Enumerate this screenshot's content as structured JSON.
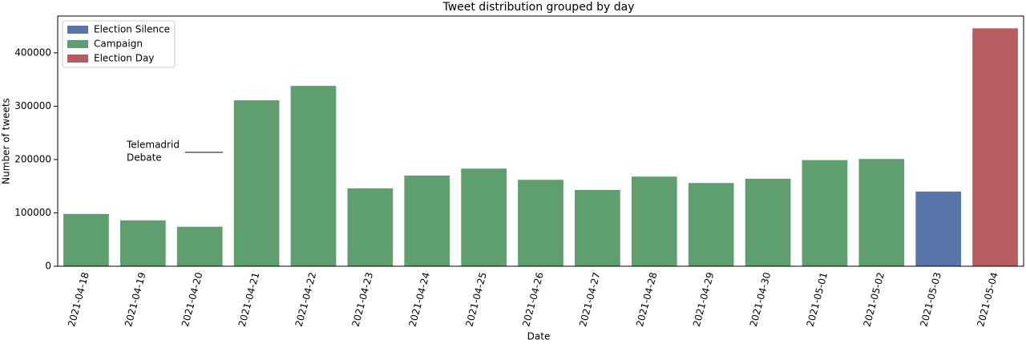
{
  "chart_data": {
    "type": "bar",
    "title": "Tweet distribution grouped by day",
    "x_label": "Date",
    "y_label": "Number of tweets",
    "categories": [
      "2021-04-18",
      "2021-04-19",
      "2021-04-20",
      "2021-04-21",
      "2021-04-22",
      "2021-04-23",
      "2021-04-24",
      "2021-04-25",
      "2021-04-26",
      "2021-04-27",
      "2021-04-28",
      "2021-04-29",
      "2021-04-30",
      "2021-05-01",
      "2021-05-02",
      "2021-05-03",
      "2021-05-04"
    ],
    "series": [
      {
        "name": "Election Silence",
        "color": "#5874a8",
        "values": [
          null,
          null,
          null,
          null,
          null,
          null,
          null,
          null,
          null,
          null,
          null,
          null,
          null,
          null,
          null,
          140000,
          null
        ]
      },
      {
        "name": "Campaign",
        "color": "#5f9e6e",
        "values": [
          98000,
          86000,
          74000,
          311000,
          338000,
          146000,
          170000,
          183000,
          162000,
          143000,
          168000,
          156000,
          164000,
          199000,
          201000,
          null,
          null
        ]
      },
      {
        "name": "Election Day",
        "color": "#b55d60",
        "values": [
          null,
          null,
          null,
          null,
          null,
          null,
          null,
          null,
          null,
          null,
          null,
          null,
          null,
          null,
          null,
          null,
          446000
        ]
      }
    ],
    "annotation": [
      "Telemadrid",
      "Debate"
    ],
    "ylim": [
      0,
      469000
    ],
    "yticks": [
      0,
      100000,
      200000,
      300000,
      400000
    ],
    "legend": "upper left"
  }
}
